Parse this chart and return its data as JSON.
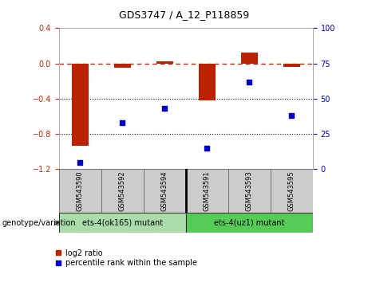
{
  "title": "GDS3747 / A_12_P118859",
  "samples": [
    "GSM543590",
    "GSM543592",
    "GSM543594",
    "GSM543591",
    "GSM543593",
    "GSM543595"
  ],
  "log2_ratio": [
    -0.93,
    -0.05,
    0.02,
    -0.42,
    0.12,
    -0.04
  ],
  "percentile_rank": [
    5,
    33,
    43,
    15,
    62,
    38
  ],
  "ylim_left": [
    -1.2,
    0.4
  ],
  "ylim_right": [
    0,
    100
  ],
  "bar_color": "#bb2200",
  "scatter_color": "#0000cc",
  "dashed_line_color": "#cc2200",
  "dotted_line_color": "#000000",
  "tick_color_left": "#cc2200",
  "tick_color_right": "#0000cc",
  "sample_bg_color": "#cccccc",
  "group1_color": "#aaddaa",
  "group2_color": "#55cc55",
  "group1_label": "ets-4(ok165) mutant",
  "group2_label": "ets-4(uz1) mutant",
  "genotype_label": "genotype/variation",
  "legend_label1": "log2 ratio",
  "legend_label2": "percentile rank within the sample",
  "title_fontsize": 9,
  "tick_fontsize": 7,
  "sample_fontsize": 6,
  "group_fontsize": 7,
  "legend_fontsize": 7,
  "genotype_fontsize": 7
}
